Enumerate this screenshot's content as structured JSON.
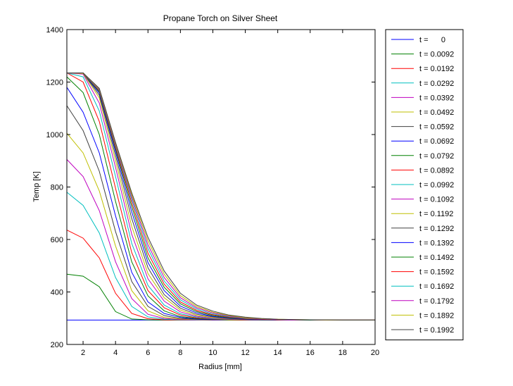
{
  "chart_data": {
    "type": "line",
    "title": "Propane Torch on Silver Sheet",
    "xlabel": "Radius [mm]",
    "ylabel": "Temp [K]",
    "xlim": [
      1,
      20
    ],
    "ylim": [
      200,
      1400
    ],
    "xticks": [
      2,
      4,
      6,
      8,
      10,
      12,
      14,
      16,
      18,
      20
    ],
    "yticks": [
      200,
      400,
      600,
      800,
      1000,
      1200,
      1400
    ],
    "legend_position": "outside-right",
    "grid": false,
    "x": [
      1,
      2,
      3,
      4,
      5,
      6,
      7,
      8,
      9,
      10,
      11,
      12,
      13,
      14,
      15,
      16,
      17,
      18,
      19,
      20
    ],
    "series": [
      {
        "name": "t =      0",
        "color": "#0000ff",
        "values": [
          293,
          293,
          293,
          293,
          293,
          293,
          293,
          293,
          293,
          293,
          293,
          293,
          293,
          293,
          293,
          293,
          293,
          293,
          293,
          293
        ]
      },
      {
        "name": "t = 0.0092",
        "color": "#008000",
        "values": [
          468,
          460,
          420,
          325,
          297,
          294,
          293,
          293,
          293,
          293,
          293,
          293,
          293,
          293,
          293,
          293,
          293,
          293,
          293,
          293
        ]
      },
      {
        "name": "t = 0.0192",
        "color": "#ff0000",
        "values": [
          636,
          605,
          530,
          395,
          318,
          298,
          294,
          293,
          293,
          293,
          293,
          293,
          293,
          293,
          293,
          293,
          293,
          293,
          293,
          293
        ]
      },
      {
        "name": "t = 0.0292",
        "color": "#00bfbf",
        "values": [
          780,
          730,
          625,
          455,
          345,
          305,
          296,
          294,
          293,
          293,
          293,
          293,
          293,
          293,
          293,
          293,
          293,
          293,
          293,
          293
        ]
      },
      {
        "name": "t = 0.0392",
        "color": "#bf00bf",
        "values": [
          905,
          840,
          710,
          515,
          375,
          315,
          299,
          295,
          294,
          293,
          293,
          293,
          293,
          293,
          293,
          293,
          293,
          293,
          293,
          293
        ]
      },
      {
        "name": "t = 0.0492",
        "color": "#bfbf00",
        "values": [
          1005,
          930,
          785,
          575,
          405,
          328,
          303,
          297,
          295,
          294,
          293,
          293,
          293,
          293,
          293,
          293,
          293,
          293,
          293,
          293
        ]
      },
      {
        "name": "t = 0.0592",
        "color": "#404040",
        "values": [
          1110,
          1015,
          860,
          630,
          440,
          345,
          310,
          299,
          296,
          294,
          294,
          293,
          293,
          293,
          293,
          293,
          293,
          293,
          293,
          293
        ]
      },
      {
        "name": "t = 0.0692",
        "color": "#0000ff",
        "values": [
          1180,
          1085,
          930,
          690,
          475,
          362,
          318,
          303,
          297,
          295,
          294,
          294,
          293,
          293,
          293,
          293,
          293,
          293,
          293,
          293
        ]
      },
      {
        "name": "t = 0.0792",
        "color": "#008000",
        "values": [
          1220,
          1160,
          1000,
          745,
          515,
          385,
          328,
          306,
          299,
          296,
          294,
          294,
          293,
          293,
          293,
          293,
          293,
          293,
          293,
          293
        ]
      },
      {
        "name": "t = 0.0892",
        "color": "#ff0000",
        "values": [
          1235,
          1200,
          1050,
          795,
          550,
          405,
          340,
          312,
          301,
          297,
          295,
          294,
          294,
          293,
          293,
          293,
          293,
          293,
          293,
          293
        ]
      },
      {
        "name": "t = 0.0992",
        "color": "#00bfbf",
        "values": [
          1235,
          1220,
          1090,
          840,
          585,
          425,
          350,
          317,
          304,
          298,
          296,
          295,
          294,
          294,
          293,
          293,
          293,
          293,
          293,
          293
        ]
      },
      {
        "name": "t = 0.1092",
        "color": "#bf00bf",
        "values": [
          1235,
          1230,
          1120,
          875,
          620,
          450,
          365,
          324,
          307,
          300,
          297,
          295,
          294,
          294,
          293,
          293,
          293,
          293,
          293,
          293
        ]
      },
      {
        "name": "t = 0.1192",
        "color": "#bfbf00",
        "values": [
          1235,
          1233,
          1140,
          900,
          650,
          470,
          378,
          331,
          311,
          302,
          298,
          296,
          295,
          294,
          294,
          293,
          293,
          293,
          293,
          293
        ]
      },
      {
        "name": "t = 0.1292",
        "color": "#404040",
        "values": [
          1235,
          1235,
          1150,
          920,
          680,
          492,
          390,
          338,
          315,
          305,
          299,
          296,
          295,
          294,
          294,
          293,
          293,
          293,
          293,
          293
        ]
      },
      {
        "name": "t = 0.1392",
        "color": "#0000ff",
        "values": [
          1235,
          1235,
          1158,
          935,
          705,
          512,
          405,
          346,
          320,
          307,
          300,
          297,
          295,
          294,
          294,
          293,
          293,
          293,
          293,
          293
        ]
      },
      {
        "name": "t = 0.1492",
        "color": "#008000",
        "values": [
          1235,
          1235,
          1163,
          945,
          725,
          530,
          418,
          355,
          325,
          310,
          302,
          298,
          296,
          295,
          294,
          293,
          293,
          293,
          293,
          293
        ]
      },
      {
        "name": "t = 0.1592",
        "color": "#ff0000",
        "values": [
          1235,
          1235,
          1167,
          952,
          740,
          548,
          430,
          362,
          330,
          313,
          304,
          299,
          296,
          295,
          294,
          294,
          293,
          293,
          293,
          293
        ]
      },
      {
        "name": "t = 0.1692",
        "color": "#00bfbf",
        "values": [
          1235,
          1235,
          1170,
          958,
          752,
          565,
          442,
          370,
          335,
          316,
          306,
          300,
          297,
          295,
          294,
          294,
          293,
          293,
          293,
          293
        ]
      },
      {
        "name": "t = 0.1792",
        "color": "#bf00bf",
        "values": [
          1235,
          1235,
          1172,
          962,
          762,
          580,
          455,
          378,
          340,
          320,
          308,
          301,
          297,
          295,
          294,
          294,
          293,
          293,
          293,
          293
        ]
      },
      {
        "name": "t = 0.1892",
        "color": "#bfbf00",
        "values": [
          1235,
          1235,
          1174,
          966,
          770,
          595,
          468,
          386,
          345,
          323,
          310,
          302,
          298,
          296,
          295,
          294,
          293,
          293,
          293,
          293
        ]
      },
      {
        "name": "t = 0.1992",
        "color": "#404040",
        "values": [
          1235,
          1235,
          1176,
          970,
          778,
          608,
          480,
          395,
          350,
          327,
          312,
          304,
          299,
          296,
          295,
          294,
          294,
          293,
          293,
          293
        ]
      }
    ]
  }
}
